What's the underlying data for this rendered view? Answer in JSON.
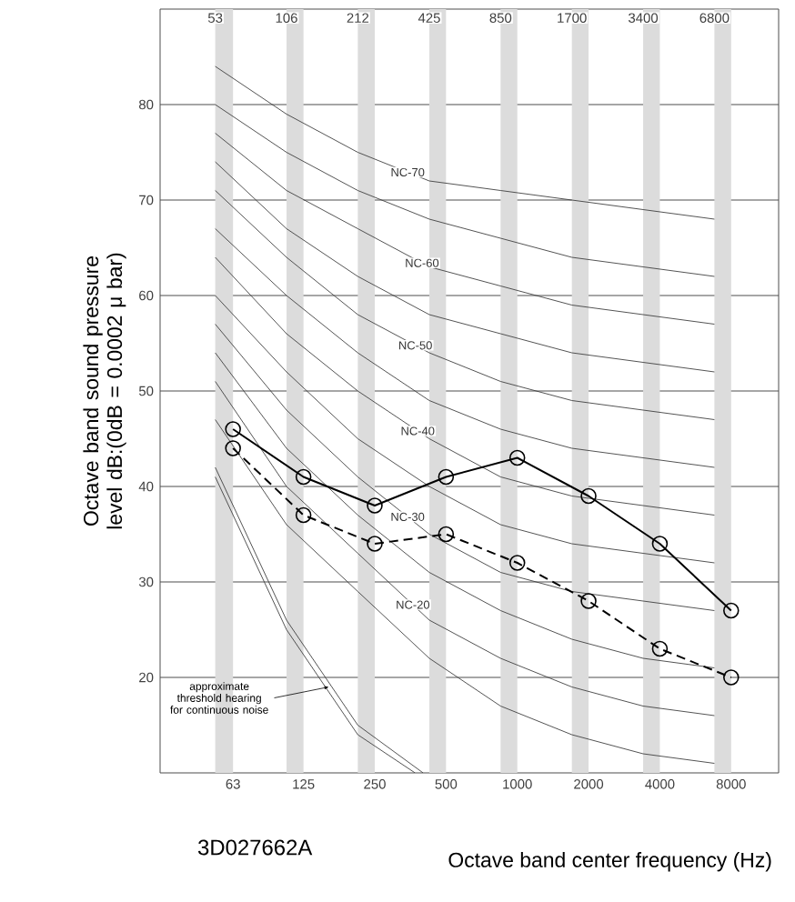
{
  "chart_data": {
    "type": "line",
    "xlabel": "Octave band center frequency (Hz)",
    "ylabel": "Octave band sound pressure level dB:(0dB = 0.0002 μ bar)",
    "log": "x",
    "grid": "y",
    "marker": "none",
    "xlim": [
      31,
      12700
    ],
    "xticks": [
      63,
      125,
      250,
      500,
      1000,
      2000,
      4000,
      8000
    ],
    "ylim": [
      10,
      90
    ],
    "yticks": [
      20,
      30,
      40,
      50,
      60,
      70,
      80
    ],
    "x": [
      63,
      125,
      250,
      500,
      1000,
      2000,
      4000,
      8000
    ],
    "bands": [
      {
        "axis": "x",
        "from": 53,
        "to": 63,
        "color": "#dcdcdc",
        "label": "53"
      },
      {
        "axis": "x",
        "from": 106,
        "to": 125,
        "color": "#dcdcdc",
        "label": "106"
      },
      {
        "axis": "x",
        "from": 212,
        "to": 250,
        "color": "#dcdcdc",
        "label": "212"
      },
      {
        "axis": "x",
        "from": 425,
        "to": 500,
        "color": "#dcdcdc",
        "label": "425"
      },
      {
        "axis": "x",
        "from": 850,
        "to": 1000,
        "color": "#dcdcdc",
        "label": "850"
      },
      {
        "axis": "x",
        "from": 1700,
        "to": 2000,
        "color": "#dcdcdc",
        "label": "1700"
      },
      {
        "axis": "x",
        "from": 3400,
        "to": 4000,
        "color": "#dcdcdc",
        "label": "3400"
      },
      {
        "axis": "x",
        "from": 6800,
        "to": 8000,
        "color": "#dcdcdc",
        "label": "6800"
      }
    ],
    "series": [
      {
        "name": "NC-70",
        "color": "#404040",
        "x": [
          53,
          106,
          212,
          425,
          850,
          1700,
          3400,
          6800
        ],
        "values": [
          84,
          79,
          75,
          72,
          71,
          70,
          69,
          68
        ]
      },
      {
        "color": "#404040",
        "x": [
          53,
          106,
          212,
          425,
          850,
          1700,
          3400,
          6800
        ],
        "values": [
          80,
          75,
          71,
          68,
          66,
          64,
          63,
          62
        ]
      },
      {
        "name": "NC-60",
        "color": "#404040",
        "x": [
          53,
          106,
          212,
          425,
          850,
          1700,
          3400,
          6800
        ],
        "values": [
          77,
          71,
          67,
          63,
          61,
          59,
          58,
          57
        ]
      },
      {
        "color": "#404040",
        "x": [
          53,
          106,
          212,
          425,
          850,
          1700,
          3400,
          6800
        ],
        "values": [
          74,
          67,
          62,
          58,
          56,
          54,
          53,
          52
        ]
      },
      {
        "name": "NC-50",
        "color": "#404040",
        "x": [
          53,
          106,
          212,
          425,
          850,
          1700,
          3400,
          6800
        ],
        "values": [
          71,
          64,
          58,
          54,
          51,
          49,
          48,
          47
        ]
      },
      {
        "color": "#404040",
        "x": [
          53,
          106,
          212,
          425,
          850,
          1700,
          3400,
          6800
        ],
        "values": [
          67,
          60,
          54,
          49,
          46,
          44,
          43,
          42
        ]
      },
      {
        "name": "NC-40",
        "color": "#404040",
        "x": [
          53,
          106,
          212,
          425,
          850,
          1700,
          3400,
          6800
        ],
        "values": [
          64,
          56,
          50,
          45,
          41,
          39,
          38,
          37
        ]
      },
      {
        "color": "#404040",
        "x": [
          53,
          106,
          212,
          425,
          850,
          1700,
          3400,
          6800
        ],
        "values": [
          60,
          52,
          45,
          40,
          36,
          34,
          33,
          32
        ]
      },
      {
        "name": "NC-30",
        "color": "#404040",
        "x": [
          53,
          106,
          212,
          425,
          850,
          1700,
          3400,
          6800
        ],
        "values": [
          57,
          48,
          41,
          35,
          31,
          29,
          28,
          27
        ]
      },
      {
        "color": "#404040",
        "x": [
          53,
          106,
          212,
          425,
          850,
          1700,
          3400,
          6800
        ],
        "values": [
          54,
          44,
          37,
          31,
          27,
          24,
          22,
          21
        ]
      },
      {
        "name": "NC-20",
        "color": "#404040",
        "x": [
          53,
          106,
          212,
          425,
          850,
          1700,
          3400,
          6800
        ],
        "values": [
          51,
          40,
          33,
          26,
          22,
          19,
          17,
          16
        ]
      },
      {
        "color": "#404040",
        "x": [
          53,
          106,
          212,
          425,
          850,
          1700,
          3400,
          6800
        ],
        "values": [
          47,
          36,
          29,
          22,
          17,
          14,
          12,
          11
        ]
      },
      {
        "color": "#404040",
        "x": [
          53,
          106,
          212,
          400
        ],
        "values": [
          42,
          26,
          15,
          10
        ]
      },
      {
        "color": "#404040",
        "x": [
          53,
          106,
          212,
          370
        ],
        "values": [
          41,
          25,
          14,
          10
        ]
      },
      {
        "color": "#000000",
        "marker": "circle",
        "values": [
          46,
          41,
          38,
          41,
          43,
          39,
          34,
          27
        ]
      },
      {
        "color": "#000000",
        "marker": "circle",
        "line_style": "dashed",
        "values": [
          44,
          37,
          34,
          35,
          32,
          28,
          23,
          20
        ]
      }
    ],
    "annotations": [
      {
        "text": "approximate threshold hearing for continuous noise",
        "x": 160,
        "y": 19
      },
      "3D027662A"
    ]
  }
}
